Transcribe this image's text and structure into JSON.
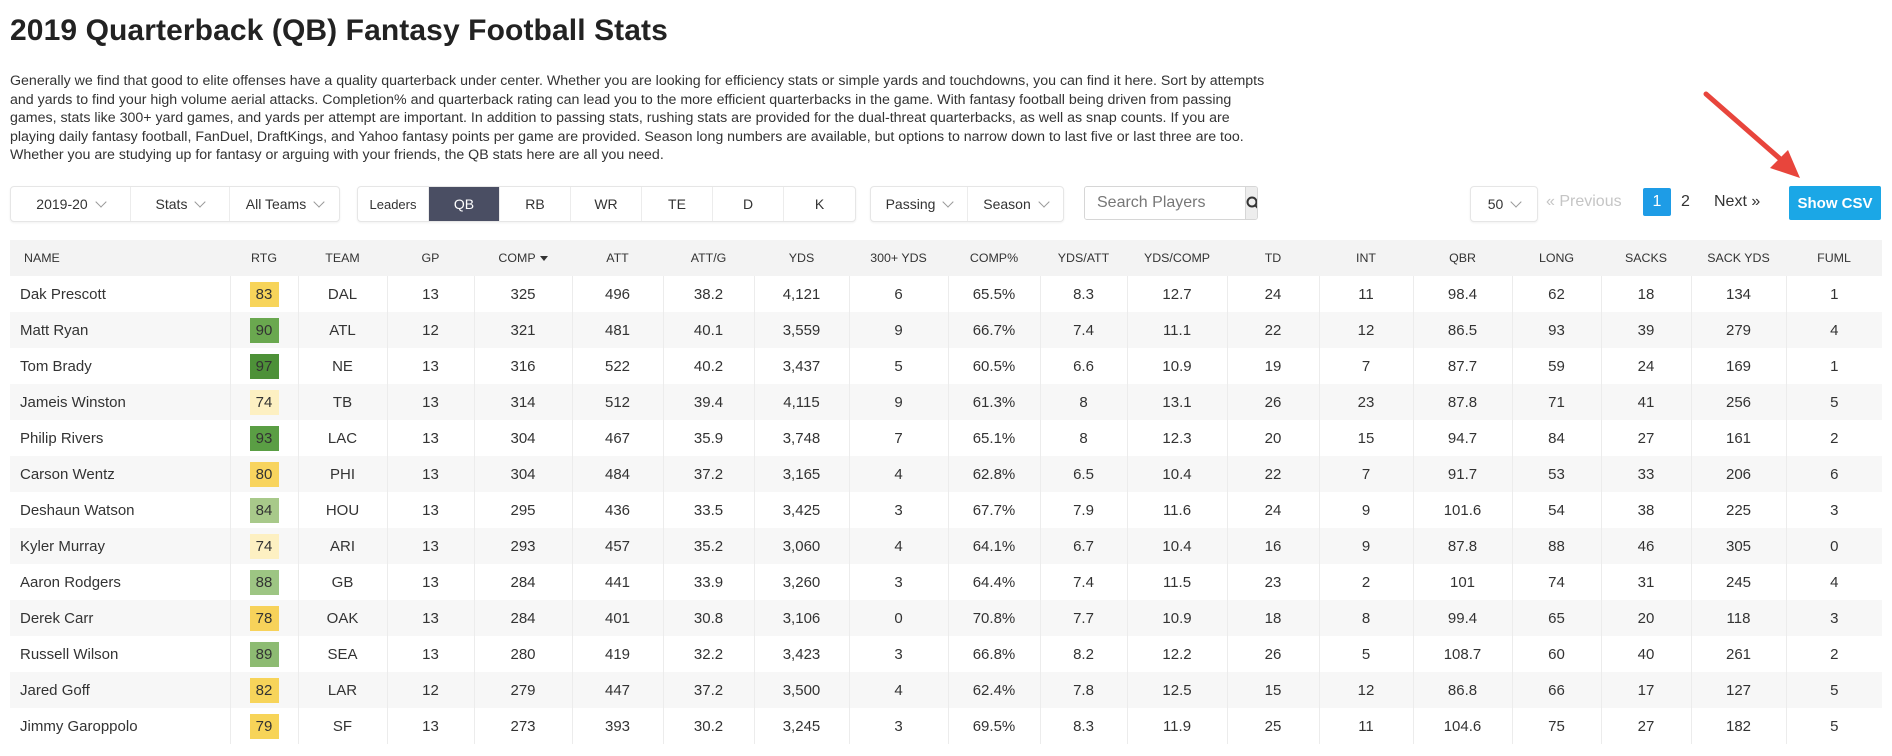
{
  "page": {
    "title": "2019 Quarterback (QB) Fantasy Football Stats",
    "intro": "Generally we find that good to elite offenses have a quality quarterback under center. Whether you are looking for efficiency stats or simple yards and touchdowns, you can find it here. Sort by attempts and yards to find your high volume aerial attacks. Completion% and quarterback rating can lead you to the more efficient quarterbacks in the game. With fantasy football being driven from passing games, stats like 300+ yard games, and yards per attempt are important. In addition to passing stats, rushing stats are provided for the dual-threat quarterbacks, as well as snap counts. If you are playing daily fantasy football, FanDuel, DraftKings, and Yahoo fantasy points per game are provided. Season long numbers are available, but options to narrow down to last five or last three are too. Whether you are studying up for fantasy or arguing with your friends, the QB stats here are all you need."
  },
  "filters": {
    "season": "2019-20",
    "stats": "Stats",
    "teams": "All Teams",
    "leaders_label": "Leaders",
    "positions": [
      "QB",
      "RB",
      "WR",
      "TE",
      "D",
      "K"
    ],
    "active_position": "QB",
    "category": "Passing",
    "range": "Season"
  },
  "search": {
    "placeholder": "Search Players",
    "icon": "search-icon"
  },
  "pagination": {
    "per_page": "50",
    "previous": "« Previous",
    "pages": [
      "1",
      "2"
    ],
    "current": "1",
    "next": "Next »",
    "csv": "Show CSV"
  },
  "colors": {
    "accent": "#1ba7e6",
    "active_tab": "#4a4e63",
    "annotation_arrow": "#e8453c",
    "rating_scale": {
      "74": "#fdf0c2",
      "78": "#f7d25a",
      "79": "#f7d458",
      "80": "#f8d45e",
      "82": "#f7d45a",
      "83": "#f7d45a",
      "84": "#a8c98a",
      "88": "#9dc583",
      "89": "#8dbb72",
      "90": "#6aa84f",
      "93": "#5a9e44",
      "97": "#4d9138"
    }
  },
  "table": {
    "columns": [
      "NAME",
      "RTG",
      "TEAM",
      "GP",
      "COMP",
      "ATT",
      "ATT/G",
      "YDS",
      "300+ YDS",
      "COMP%",
      "YDS/ATT",
      "YDS/COMP",
      "TD",
      "INT",
      "QBR",
      "LONG",
      "SACKS",
      "SACK YDS",
      "FUML"
    ],
    "sorted_column": "COMP",
    "rows": [
      [
        "Dak Prescott",
        "83",
        "DAL",
        "13",
        "325",
        "496",
        "38.2",
        "4,121",
        "6",
        "65.5%",
        "8.3",
        "12.7",
        "24",
        "11",
        "98.4",
        "62",
        "18",
        "134",
        "1"
      ],
      [
        "Matt Ryan",
        "90",
        "ATL",
        "12",
        "321",
        "481",
        "40.1",
        "3,559",
        "9",
        "66.7%",
        "7.4",
        "11.1",
        "22",
        "12",
        "86.5",
        "93",
        "39",
        "279",
        "4"
      ],
      [
        "Tom Brady",
        "97",
        "NE",
        "13",
        "316",
        "522",
        "40.2",
        "3,437",
        "5",
        "60.5%",
        "6.6",
        "10.9",
        "19",
        "7",
        "87.7",
        "59",
        "24",
        "169",
        "1"
      ],
      [
        "Jameis Winston",
        "74",
        "TB",
        "13",
        "314",
        "512",
        "39.4",
        "4,115",
        "9",
        "61.3%",
        "8",
        "13.1",
        "26",
        "23",
        "87.8",
        "71",
        "41",
        "256",
        "5"
      ],
      [
        "Philip Rivers",
        "93",
        "LAC",
        "13",
        "304",
        "467",
        "35.9",
        "3,748",
        "7",
        "65.1%",
        "8",
        "12.3",
        "20",
        "15",
        "94.7",
        "84",
        "27",
        "161",
        "2"
      ],
      [
        "Carson Wentz",
        "80",
        "PHI",
        "13",
        "304",
        "484",
        "37.2",
        "3,165",
        "4",
        "62.8%",
        "6.5",
        "10.4",
        "22",
        "7",
        "91.7",
        "53",
        "33",
        "206",
        "6"
      ],
      [
        "Deshaun Watson",
        "84",
        "HOU",
        "13",
        "295",
        "436",
        "33.5",
        "3,425",
        "3",
        "67.7%",
        "7.9",
        "11.6",
        "24",
        "9",
        "101.6",
        "54",
        "38",
        "225",
        "3"
      ],
      [
        "Kyler Murray",
        "74",
        "ARI",
        "13",
        "293",
        "457",
        "35.2",
        "3,060",
        "4",
        "64.1%",
        "6.7",
        "10.4",
        "16",
        "9",
        "87.8",
        "88",
        "46",
        "305",
        "0"
      ],
      [
        "Aaron Rodgers",
        "88",
        "GB",
        "13",
        "284",
        "441",
        "33.9",
        "3,260",
        "3",
        "64.4%",
        "7.4",
        "11.5",
        "23",
        "2",
        "101",
        "74",
        "31",
        "245",
        "4"
      ],
      [
        "Derek Carr",
        "78",
        "OAK",
        "13",
        "284",
        "401",
        "30.8",
        "3,106",
        "0",
        "70.8%",
        "7.7",
        "10.9",
        "18",
        "8",
        "99.4",
        "65",
        "20",
        "118",
        "3"
      ],
      [
        "Russell Wilson",
        "89",
        "SEA",
        "13",
        "280",
        "419",
        "32.2",
        "3,423",
        "3",
        "66.8%",
        "8.2",
        "12.2",
        "26",
        "5",
        "108.7",
        "60",
        "40",
        "261",
        "2"
      ],
      [
        "Jared Goff",
        "82",
        "LAR",
        "12",
        "279",
        "447",
        "37.2",
        "3,500",
        "4",
        "62.4%",
        "7.8",
        "12.5",
        "15",
        "12",
        "86.8",
        "66",
        "17",
        "127",
        "5"
      ],
      [
        "Jimmy Garoppolo",
        "79",
        "SF",
        "13",
        "273",
        "393",
        "30.2",
        "3,245",
        "3",
        "69.5%",
        "8.3",
        "11.9",
        "25",
        "11",
        "104.6",
        "75",
        "27",
        "182",
        "5"
      ]
    ]
  }
}
